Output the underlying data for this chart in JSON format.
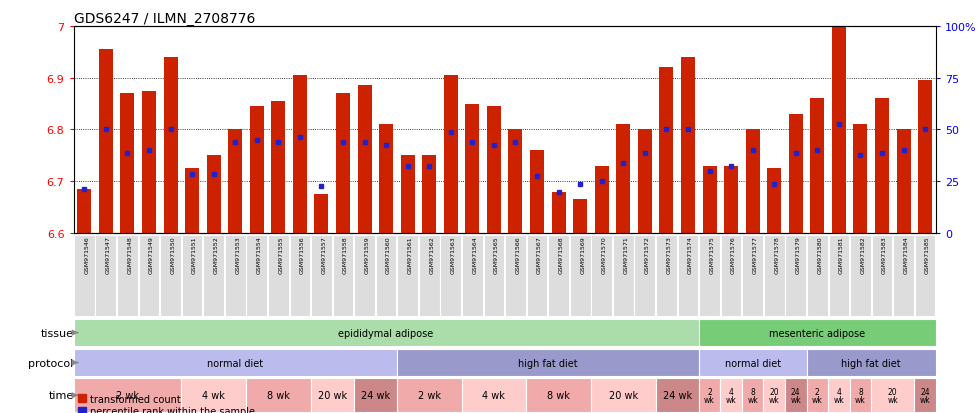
{
  "title": "GDS6247 / ILMN_2708776",
  "samples": [
    "GSM971546",
    "GSM971547",
    "GSM971548",
    "GSM971549",
    "GSM971550",
    "GSM971551",
    "GSM971552",
    "GSM971553",
    "GSM971554",
    "GSM971555",
    "GSM971556",
    "GSM971557",
    "GSM971558",
    "GSM971559",
    "GSM971560",
    "GSM971561",
    "GSM971562",
    "GSM971563",
    "GSM971564",
    "GSM971565",
    "GSM971566",
    "GSM971567",
    "GSM971568",
    "GSM971569",
    "GSM971570",
    "GSM971571",
    "GSM971572",
    "GSM971573",
    "GSM971574",
    "GSM971575",
    "GSM971576",
    "GSM971577",
    "GSM971578",
    "GSM971579",
    "GSM971580",
    "GSM971581",
    "GSM971582",
    "GSM971583",
    "GSM971584",
    "GSM971585"
  ],
  "bar_values": [
    6.685,
    6.955,
    6.87,
    6.875,
    6.94,
    6.725,
    6.75,
    6.8,
    6.845,
    6.855,
    6.905,
    6.675,
    6.87,
    6.885,
    6.81,
    6.75,
    6.75,
    6.905,
    6.85,
    6.845,
    6.8,
    6.76,
    6.68,
    6.665,
    6.73,
    6.81,
    6.8,
    6.92,
    6.94,
    6.73,
    6.73,
    6.8,
    6.725,
    6.83,
    6.86,
    7.0,
    6.81,
    6.86,
    6.8,
    6.895
  ],
  "percentile_values": [
    6.685,
    6.8,
    6.755,
    6.76,
    6.8,
    6.715,
    6.715,
    6.775,
    6.78,
    6.775,
    6.785,
    6.69,
    6.775,
    6.775,
    6.77,
    6.73,
    6.73,
    6.795,
    6.775,
    6.77,
    6.775,
    6.71,
    6.68,
    6.695,
    6.7,
    6.735,
    6.755,
    6.8,
    6.8,
    6.72,
    6.73,
    6.76,
    6.695,
    6.755,
    6.76,
    6.81,
    6.75,
    6.755,
    6.76,
    6.8
  ],
  "ylim": [
    6.6,
    7.0
  ],
  "yticks": [
    6.6,
    6.7,
    6.8,
    6.9,
    7.0
  ],
  "ytick_labels": [
    "6.6",
    "6.7",
    "6.8",
    "6.9",
    "7"
  ],
  "right_ytick_labels": [
    "0",
    "25",
    "50",
    "75",
    "100%"
  ],
  "bar_color": "#CC2200",
  "dot_color": "#2222CC",
  "bar_width": 0.65,
  "tissue_groups": [
    {
      "label": "epididymal adipose",
      "start": 0,
      "end": 29,
      "color": "#AADDAA"
    },
    {
      "label": "mesenteric adipose",
      "start": 29,
      "end": 40,
      "color": "#77CC77"
    }
  ],
  "protocol_groups": [
    {
      "label": "normal diet",
      "start": 0,
      "end": 15,
      "color": "#BBBBEE"
    },
    {
      "label": "high fat diet",
      "start": 15,
      "end": 29,
      "color": "#9999CC"
    },
    {
      "label": "normal diet",
      "start": 29,
      "end": 34,
      "color": "#BBBBEE"
    },
    {
      "label": "high fat diet",
      "start": 34,
      "end": 40,
      "color": "#9999CC"
    }
  ],
  "time_groups": [
    {
      "label": "2 wk",
      "start": 0,
      "end": 5,
      "color": "#F0AAAA",
      "two_line": false
    },
    {
      "label": "4 wk",
      "start": 5,
      "end": 8,
      "color": "#FFCCCC",
      "two_line": false
    },
    {
      "label": "8 wk",
      "start": 8,
      "end": 11,
      "color": "#F0AAAA",
      "two_line": false
    },
    {
      "label": "20 wk",
      "start": 11,
      "end": 13,
      "color": "#FFCCCC",
      "two_line": false
    },
    {
      "label": "24 wk",
      "start": 13,
      "end": 15,
      "color": "#CC8888",
      "two_line": false
    },
    {
      "label": "2 wk",
      "start": 15,
      "end": 18,
      "color": "#F0AAAA",
      "two_line": false
    },
    {
      "label": "4 wk",
      "start": 18,
      "end": 21,
      "color": "#FFCCCC",
      "two_line": false
    },
    {
      "label": "8 wk",
      "start": 21,
      "end": 24,
      "color": "#F0AAAA",
      "two_line": false
    },
    {
      "label": "20 wk",
      "start": 24,
      "end": 27,
      "color": "#FFCCCC",
      "two_line": false
    },
    {
      "label": "24 wk",
      "start": 27,
      "end": 29,
      "color": "#CC8888",
      "two_line": false
    },
    {
      "label": "2\nwk",
      "start": 29,
      "end": 30,
      "color": "#F0AAAA",
      "two_line": true
    },
    {
      "label": "4\nwk",
      "start": 30,
      "end": 31,
      "color": "#FFCCCC",
      "two_line": true
    },
    {
      "label": "8\nwk",
      "start": 31,
      "end": 32,
      "color": "#F0AAAA",
      "two_line": true
    },
    {
      "label": "20\nwk",
      "start": 32,
      "end": 33,
      "color": "#FFCCCC",
      "two_line": true
    },
    {
      "label": "24\nwk",
      "start": 33,
      "end": 34,
      "color": "#CC8888",
      "two_line": true
    },
    {
      "label": "2\nwk",
      "start": 34,
      "end": 35,
      "color": "#F0AAAA",
      "two_line": true
    },
    {
      "label": "4\nwk",
      "start": 35,
      "end": 36,
      "color": "#FFCCCC",
      "two_line": true
    },
    {
      "label": "8\nwk",
      "start": 36,
      "end": 37,
      "color": "#F0AAAA",
      "two_line": true
    },
    {
      "label": "20\nwk",
      "start": 37,
      "end": 39,
      "color": "#FFCCCC",
      "two_line": true
    },
    {
      "label": "24\nwk",
      "start": 39,
      "end": 40,
      "color": "#CC8888",
      "two_line": true
    }
  ],
  "legend_items": [
    {
      "label": "transformed count",
      "color": "#CC2200"
    },
    {
      "label": "percentile rank within the sample",
      "color": "#2222CC"
    }
  ]
}
